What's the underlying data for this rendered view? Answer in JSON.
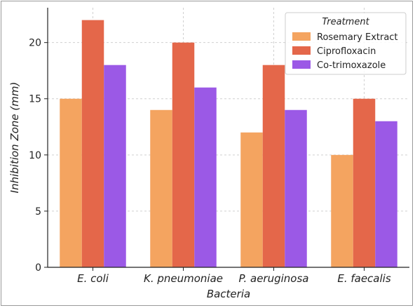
{
  "chart_data": {
    "type": "bar",
    "title": "",
    "xlabel": "Bacteria",
    "ylabel": "Inhibition Zone (mm)",
    "categories": [
      "E. coli",
      "K. pneumoniae",
      "P. aeruginosa",
      "E. faecalis"
    ],
    "series": [
      {
        "name": "Rosemary Extract",
        "values": [
          15,
          14,
          12,
          10
        ],
        "color": "#f4a460"
      },
      {
        "name": "Ciprofloxacin",
        "values": [
          22,
          20,
          18,
          15
        ],
        "color": "#e4674a"
      },
      {
        "name": "Co-trimoxazole",
        "values": [
          18,
          16,
          14,
          13
        ],
        "color": "#9b59e6"
      }
    ],
    "ylim": [
      0,
      23.1
    ],
    "yticks": [
      0,
      5,
      10,
      15,
      20
    ],
    "grid": true,
    "legend": {
      "title": "Treatment",
      "position": "top-right"
    }
  }
}
